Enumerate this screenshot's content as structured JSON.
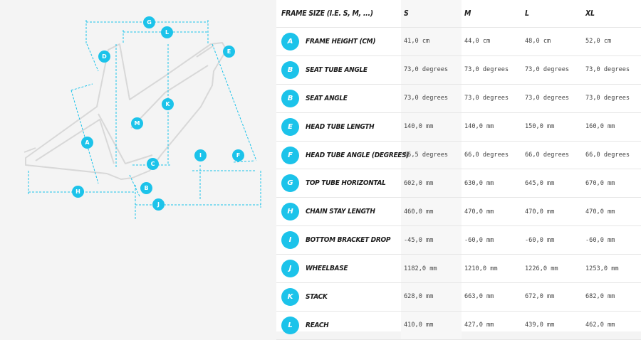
{
  "diagram": {
    "markers": [
      "G",
      "L",
      "D",
      "E",
      "K",
      "M",
      "A",
      "I",
      "F",
      "C",
      "H",
      "B",
      "J"
    ]
  },
  "table": {
    "header": {
      "label": "FRAME SIZE (I.E. S, M, ...)",
      "sizes": [
        "S",
        "M",
        "L",
        "XL"
      ]
    },
    "rows": [
      {
        "letter": "A",
        "name": "FRAME HEIGHT (CM)",
        "values": [
          "41,0 cm",
          "44,0 cm",
          "48,0 cm",
          "52,0 cm"
        ]
      },
      {
        "letter": "B",
        "name": "SEAT TUBE ANGLE",
        "values": [
          "73,0 degrees",
          "73,0 degrees",
          "73,0 degrees",
          "73,0 degrees"
        ]
      },
      {
        "letter": "B",
        "name": "SEAT ANGLE",
        "values": [
          "73,0 degrees",
          "73,0 degrees",
          "73,0 degrees",
          "73,0 degrees"
        ]
      },
      {
        "letter": "E",
        "name": "HEAD TUBE LENGTH",
        "values": [
          "140,0 mm",
          "140,0 mm",
          "150,0 mm",
          "160,0 mm"
        ]
      },
      {
        "letter": "F",
        "name": "HEAD TUBE ANGLE (DEGREES)",
        "values": [
          "65,5 degrees",
          "66,0 degrees",
          "66,0 degrees",
          "66,0 degrees"
        ]
      },
      {
        "letter": "G",
        "name": "TOP TUBE HORIZONTAL",
        "values": [
          "602,0 mm",
          "630,0 mm",
          "645,0 mm",
          "670,0 mm"
        ]
      },
      {
        "letter": "H",
        "name": "CHAIN STAY LENGTH",
        "values": [
          "460,0 mm",
          "470,0 mm",
          "470,0 mm",
          "470,0 mm"
        ]
      },
      {
        "letter": "I",
        "name": "BOTTOM BRACKET DROP",
        "values": [
          "-45,0 mm",
          "-60,0 mm",
          "-60,0 mm",
          "-60,0 mm"
        ]
      },
      {
        "letter": "J",
        "name": "WHEELBASE",
        "values": [
          "1182,0 mm",
          "1210,0 mm",
          "1226,0 mm",
          "1253,0 mm"
        ]
      },
      {
        "letter": "K",
        "name": "STACK",
        "values": [
          "628,0 mm",
          "663,0 mm",
          "672,0 mm",
          "682,0 mm"
        ]
      },
      {
        "letter": "L",
        "name": "REACH",
        "values": [
          "410,0 mm",
          "427,0 mm",
          "439,0 mm",
          "462,0 mm"
        ]
      }
    ]
  },
  "colors": {
    "accent": "#1cc3ea",
    "frame_line": "#d9d9d9"
  }
}
